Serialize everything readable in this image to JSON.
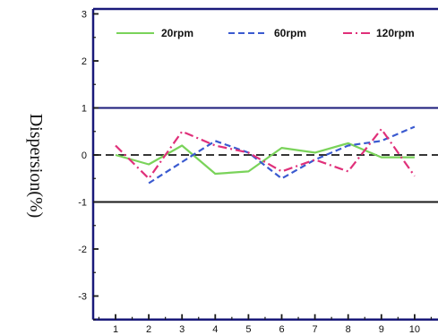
{
  "chart_data": {
    "type": "line",
    "ylabel": "Dispersion(%)",
    "xlabel": "",
    "x": [
      1,
      2,
      3,
      4,
      5,
      6,
      7,
      8,
      9,
      10
    ],
    "xlim": [
      0.5,
      10.5
    ],
    "ylim": [
      -3.5,
      3.0
    ],
    "y_ticks": [
      3,
      2,
      1,
      0,
      -1,
      -2,
      -3
    ],
    "reference_lines": [
      {
        "y": 1,
        "color": "#1a1a7a",
        "style": "solid"
      },
      {
        "y": -1,
        "color": "#1a1a1a",
        "style": "solid"
      },
      {
        "y": 0,
        "color": "#1a1a1a",
        "style": "dashed"
      }
    ],
    "legend_position": "top",
    "series": [
      {
        "name": "20rpm",
        "color": "#7ad35a",
        "dash": "solid",
        "x": [
          1,
          2,
          3,
          4,
          5,
          6,
          7,
          8,
          9,
          10
        ],
        "values": [
          0.0,
          -0.2,
          0.2,
          -0.4,
          -0.35,
          0.15,
          0.05,
          0.25,
          -0.05,
          -0.05
        ]
      },
      {
        "name": "60rpm",
        "color": "#3a5ad0",
        "dash": "dashed",
        "x": [
          2,
          3,
          4,
          5,
          6,
          7,
          8,
          9,
          10
        ],
        "values": [
          -0.6,
          -0.15,
          0.3,
          0.05,
          -0.5,
          -0.1,
          0.2,
          0.3,
          0.6
        ]
      },
      {
        "name": "120rpm",
        "color": "#e0307a",
        "dash": "dashdot",
        "x": [
          1,
          2,
          3,
          4,
          5,
          6,
          7,
          8,
          9,
          10
        ],
        "values": [
          0.2,
          -0.5,
          0.5,
          0.2,
          0.05,
          -0.35,
          -0.1,
          -0.35,
          0.55,
          -0.45
        ]
      }
    ]
  }
}
